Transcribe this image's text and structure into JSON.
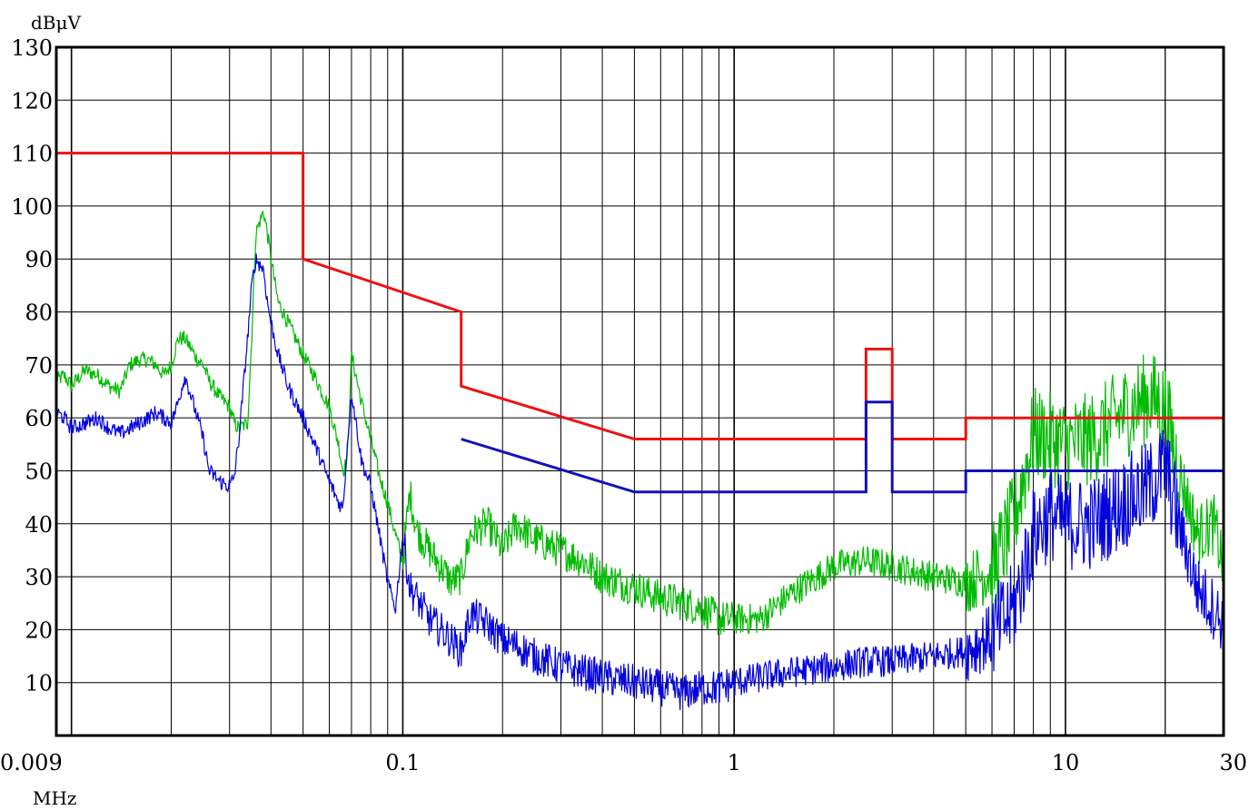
{
  "chart_data": {
    "type": "line",
    "title": "",
    "ylabel": "dBμV",
    "xlabel": "MHz",
    "x_scale": "log",
    "xlim": [
      0.009,
      30
    ],
    "ylim": [
      0,
      130
    ],
    "grid": true,
    "y_ticks": [
      130,
      120,
      110,
      100,
      90,
      80,
      70,
      60,
      50,
      40,
      30,
      20,
      10
    ],
    "y_tick_labels": [
      "130",
      "120",
      "110",
      "100",
      "90",
      "80",
      "70",
      "60",
      "50",
      "40",
      "30",
      "20",
      "10"
    ],
    "x_ticks": [
      0.009,
      0.1,
      1,
      10,
      30
    ],
    "x_tick_labels": [
      "0.009",
      "0.1",
      "1",
      "10",
      "30"
    ],
    "colors": {
      "limit_red": "#ee1111",
      "limit_blue": "#1111bb",
      "trace_green": "#00bb00",
      "trace_blue": "#0000dd",
      "grid": "#000000"
    },
    "series": [
      {
        "color": "#ee1111",
        "step": true,
        "x": [
          0.009,
          0.05,
          0.05,
          0.15,
          0.15,
          0.5,
          2.5,
          2.5,
          3.0,
          3.0,
          5.0,
          5.0,
          30
        ],
        "y": [
          110,
          110,
          90,
          80,
          66,
          56,
          56,
          73,
          73,
          56,
          56,
          60,
          60
        ]
      },
      {
        "color": "#1111bb",
        "step": true,
        "x": [
          0.15,
          0.5,
          2.5,
          2.5,
          3.0,
          3.0,
          5.0,
          5.0,
          30
        ],
        "y": [
          56,
          46,
          46,
          63,
          63,
          46,
          46,
          50,
          50
        ]
      },
      {
        "color": "#00bb00",
        "noisy": true,
        "x": [
          0.009,
          0.0095,
          0.01,
          0.011,
          0.012,
          0.013,
          0.014,
          0.015,
          0.016,
          0.017,
          0.018,
          0.019,
          0.02,
          0.021,
          0.022,
          0.024,
          0.025,
          0.026,
          0.028,
          0.03,
          0.031,
          0.032,
          0.034,
          0.035,
          0.036,
          0.038,
          0.039,
          0.04,
          0.042,
          0.045,
          0.05,
          0.055,
          0.06,
          0.064,
          0.066,
          0.068,
          0.07,
          0.075,
          0.08,
          0.085,
          0.09,
          0.095,
          0.1,
          0.105,
          0.11,
          0.12,
          0.13,
          0.14,
          0.15,
          0.16,
          0.18,
          0.2,
          0.22,
          0.25,
          0.3,
          0.35,
          0.4,
          0.5,
          0.6,
          0.7,
          0.8,
          0.9,
          1.0,
          1.2,
          1.5,
          2.0,
          2.5,
          3.0,
          4.0,
          5.0,
          6.0,
          7.0,
          8.0,
          9.0,
          10,
          12,
          15,
          18,
          20,
          22,
          25,
          28,
          30
        ],
        "y": [
          67,
          68,
          66,
          69,
          68,
          66,
          65,
          70,
          71,
          71,
          70,
          68,
          70,
          75,
          75,
          71,
          70,
          67,
          64,
          62,
          59,
          58,
          59,
          75,
          95,
          99,
          95,
          90,
          82,
          78,
          72,
          67,
          62,
          55,
          50,
          52,
          72,
          63,
          56,
          49,
          44,
          38,
          33,
          46,
          39,
          35,
          32,
          29,
          30,
          38,
          40,
          35,
          40,
          37,
          35,
          33,
          30,
          28,
          26,
          25,
          24,
          22,
          22,
          22,
          27,
          32,
          33,
          32,
          30,
          29,
          31,
          41,
          57,
          56,
          55,
          56,
          61,
          64,
          62,
          50,
          38,
          40,
          32
        ]
      },
      {
        "color": "#0000dd",
        "noisy": true,
        "x": [
          0.009,
          0.0095,
          0.01,
          0.011,
          0.012,
          0.013,
          0.014,
          0.015,
          0.016,
          0.017,
          0.018,
          0.019,
          0.02,
          0.021,
          0.022,
          0.024,
          0.025,
          0.026,
          0.028,
          0.03,
          0.031,
          0.032,
          0.034,
          0.035,
          0.036,
          0.038,
          0.039,
          0.04,
          0.042,
          0.045,
          0.05,
          0.055,
          0.06,
          0.064,
          0.066,
          0.068,
          0.07,
          0.075,
          0.08,
          0.085,
          0.09,
          0.095,
          0.1,
          0.105,
          0.11,
          0.12,
          0.13,
          0.14,
          0.15,
          0.16,
          0.18,
          0.2,
          0.22,
          0.25,
          0.3,
          0.35,
          0.4,
          0.5,
          0.6,
          0.7,
          0.8,
          0.9,
          1.0,
          1.2,
          1.5,
          2.0,
          2.5,
          3.0,
          4.0,
          5.0,
          6.0,
          7.0,
          8.0,
          9.0,
          10,
          12,
          15,
          18,
          20,
          22,
          25,
          28,
          30
        ],
        "y": [
          61,
          60,
          58,
          59,
          60,
          58,
          57,
          58,
          59,
          60,
          61,
          60,
          59,
          63,
          68,
          60,
          56,
          50,
          48,
          47,
          49,
          56,
          75,
          85,
          90,
          88,
          82,
          78,
          72,
          66,
          60,
          54,
          48,
          44,
          43,
          55,
          65,
          52,
          47,
          38,
          29,
          24,
          38,
          28,
          26,
          22,
          20,
          18,
          16,
          23,
          21,
          18,
          17,
          15,
          13,
          12,
          11,
          10,
          9,
          8,
          9,
          9,
          10,
          11,
          12,
          13,
          14,
          14,
          15,
          16,
          19,
          24,
          38,
          42,
          40,
          40,
          44,
          47,
          51,
          40,
          28,
          24,
          21
        ]
      }
    ]
  }
}
